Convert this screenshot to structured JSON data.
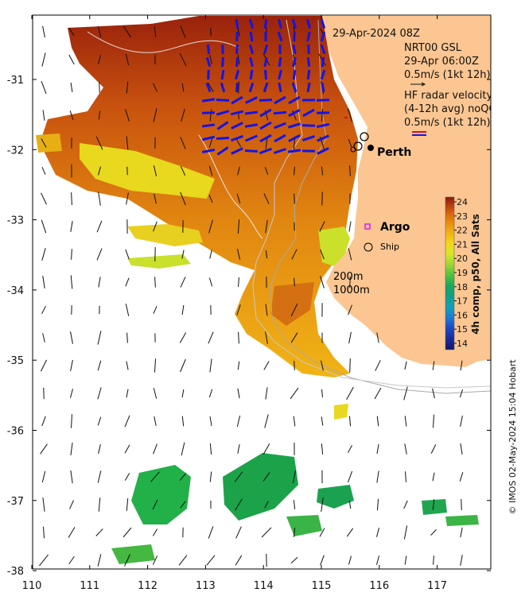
{
  "map": {
    "x_ticks": [
      "110",
      "111",
      "112",
      "113",
      "114",
      "115",
      "116",
      "117"
    ],
    "y_ticks": [
      "-31",
      "-32",
      "-33",
      "-34",
      "-35",
      "-36",
      "-37",
      "-38"
    ],
    "title_time": "29-Apr-2024 08Z",
    "wind_source": "NRT00 GSL",
    "wind_time": "29-Apr 06:00Z",
    "wind_scale": "0.5m/s (1kt 12h)",
    "radar_title_1": "HF radar velocity",
    "radar_title_2": "(4-12h avg) noQC",
    "radar_scale": "0.5m/s (1kt 12h)",
    "city": "Perth",
    "argo": "Argo",
    "ship": "Ship",
    "contour_200": "200m",
    "contour_1000": "1000m",
    "credit": "© IMOS 02-May-2024 15:04 Hobart"
  },
  "colorbar": {
    "label": "4h comp, p50, All Sats",
    "ticks": [
      "24",
      "23",
      "22",
      "21",
      "20",
      "19",
      "18",
      "17",
      "16",
      "15",
      "14"
    ],
    "colors": [
      "#8b1a0c",
      "#b33a10",
      "#d4600e",
      "#e68a0c",
      "#f0b014",
      "#f2d61c",
      "#d8e62a",
      "#9ed834",
      "#52c240",
      "#18a85a",
      "#10a088",
      "#10a0b8",
      "#1e7ad4",
      "#1e46c4",
      "#1a2a9c",
      "#10186a"
    ]
  },
  "colors": {
    "land": "#fbc692",
    "radar_arrows": "#1414e6",
    "argo_marker": "#e020e0"
  }
}
